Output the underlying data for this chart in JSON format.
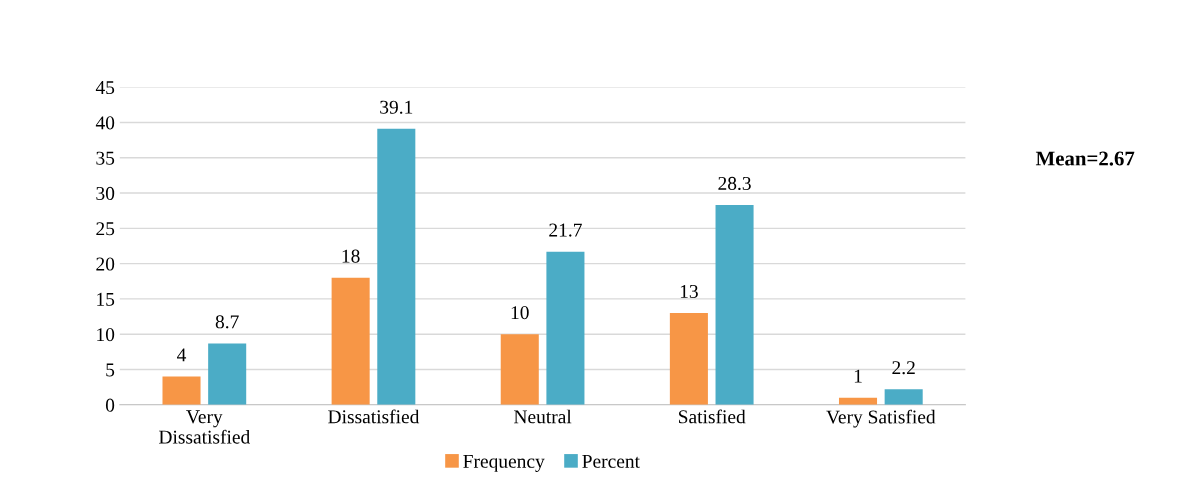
{
  "chart_data": {
    "type": "bar",
    "categories": [
      "Very\nDissatisfied",
      "Dissatisfied",
      "Neutral",
      "Satisfied",
      "Very Satisfied"
    ],
    "series": [
      {
        "name": "Frequency",
        "color": "#f79646",
        "values": [
          4,
          18,
          10,
          13,
          1
        ]
      },
      {
        "name": "Percent",
        "color": "#4bacc6",
        "values": [
          8.7,
          39.1,
          21.7,
          28.3,
          2.2
        ]
      }
    ],
    "ylim": [
      0,
      45
    ],
    "yticks": [
      0,
      5,
      10,
      15,
      20,
      25,
      30,
      35,
      40,
      45
    ],
    "grid": "y",
    "legend": "bottom",
    "data_labels": true,
    "annotations": [
      "Mean=2.67"
    ]
  }
}
